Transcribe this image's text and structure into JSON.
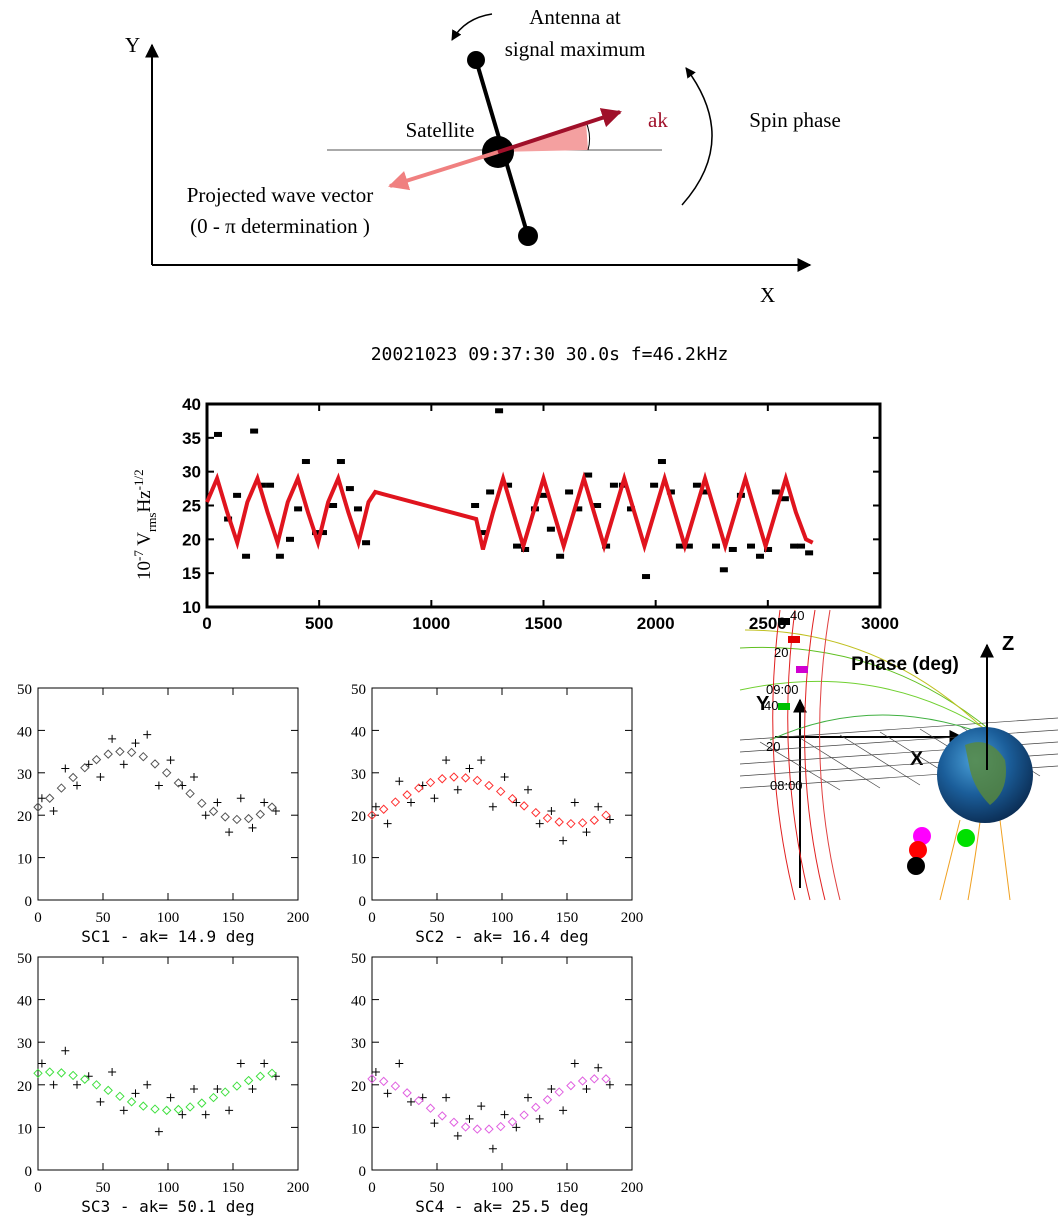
{
  "diagram": {
    "y_axis": "Y",
    "x_axis": "X",
    "antenna": [
      "Antenna  at",
      "signal maximum"
    ],
    "spin": "Spin phase",
    "satellite": "Satellite",
    "ak": "ak",
    "wave": [
      "Projected wave vector",
      "(0 - π  determination  )"
    ],
    "xy_y": "Y",
    "xy_x": "X",
    "z": "Z",
    "orbit_labels": [
      "40",
      "20",
      "09:00",
      "40",
      "20",
      "08:00"
    ]
  },
  "chart_data": [
    {
      "type": "line",
      "title": "20021023 09:37:30    30.0s  f=46.2kHz",
      "y_label": [
        "10",
        "-7",
        " V",
        "rms",
        "Hz",
        "-1/2"
      ],
      "x_label": "Phase (deg)",
      "xlim": [
        0,
        3000
      ],
      "ylim": [
        10,
        40
      ],
      "xticks": [
        0,
        500,
        1000,
        1500,
        2000,
        2500,
        3000
      ],
      "yticks": [
        10,
        15,
        20,
        25,
        30,
        35,
        40
      ],
      "series": [
        {
          "mode": "markers",
          "color": "#000000",
          "x": [
            49,
            94,
            134,
            174,
            210,
            245,
            281,
            325,
            370,
            406,
            441,
            486,
            517,
            562,
            597,
            637,
            673,
            709,
            1195,
            1226,
            1262,
            1302,
            1342,
            1382,
            1418,
            1462,
            1498,
            1533,
            1574,
            1614,
            1655,
            1699,
            1739,
            1779,
            1814,
            1854,
            1890,
            1957,
            1993,
            2028,
            2068,
            2108,
            2148,
            2184,
            2224,
            2269,
            2304,
            2344,
            2380,
            2425,
            2465,
            2501,
            2536,
            2576,
            2617,
            2648,
            2684
          ],
          "values": [
            35.5,
            23,
            26.5,
            17.5,
            36,
            28,
            28,
            17.5,
            20,
            24.5,
            31.5,
            21,
            21,
            25,
            31.5,
            27.5,
            24.5,
            19.5,
            25,
            21,
            27,
            39,
            28,
            19,
            18.5,
            24.5,
            26.5,
            21.5,
            17.5,
            27,
            24.5,
            29.5,
            25,
            19,
            28,
            28,
            24.5,
            14.5,
            28,
            31.5,
            27,
            19,
            19,
            28,
            27,
            19,
            15.5,
            18.5,
            26.5,
            19,
            17.5,
            18.5,
            27,
            26,
            19,
            19,
            18
          ]
        },
        {
          "mode": "lines",
          "color": "#e0141e",
          "x": [
            0,
            45,
            90,
            135,
            180,
            225,
            270,
            315,
            360,
            405,
            450,
            495,
            540,
            585,
            630,
            675,
            720,
            750,
            1200,
            1230,
            1275,
            1320,
            1365,
            1410,
            1455,
            1500,
            1545,
            1590,
            1635,
            1680,
            1725,
            1770,
            1815,
            1860,
            1905,
            1950,
            1995,
            2040,
            2085,
            2130,
            2175,
            2220,
            2265,
            2310,
            2355,
            2400,
            2445,
            2490,
            2535,
            2580,
            2625,
            2670,
            2700
          ],
          "values": [
            25.5,
            29,
            24,
            19.5,
            25.5,
            29,
            24,
            19.5,
            25.5,
            29,
            24,
            19.5,
            25.5,
            29,
            24,
            19.5,
            25.5,
            27,
            23,
            18.5,
            24,
            29,
            24,
            19,
            24,
            29,
            24,
            19,
            24,
            29,
            24,
            19,
            24,
            29,
            24,
            19,
            24,
            29,
            24,
            19,
            24,
            29,
            24,
            19,
            24,
            29,
            24,
            19,
            24,
            29,
            24,
            20,
            19.5
          ]
        }
      ]
    },
    {
      "type": "scatter",
      "x_label": "SC1 - ak= 14.9 deg",
      "xlim": [
        0,
        200
      ],
      "ylim": [
        0,
        50
      ],
      "xticks": [
        0,
        50,
        100,
        150,
        200
      ],
      "yticks": [
        0,
        10,
        20,
        30,
        40,
        50
      ],
      "series": [
        {
          "mode": "plus",
          "color": "#000000",
          "x": [
            3,
            12,
            21,
            30,
            39,
            48,
            57,
            66,
            75,
            84,
            93,
            102,
            111,
            120,
            129,
            138,
            147,
            156,
            165,
            174,
            183
          ],
          "values": [
            24,
            21,
            31,
            27,
            32,
            29,
            38,
            32,
            37,
            39,
            27,
            33,
            27,
            29,
            20,
            23,
            16,
            24,
            17,
            23,
            21
          ]
        },
        {
          "mode": "diamond",
          "color": "#555555",
          "x": [
            0,
            9,
            18,
            27,
            36,
            45,
            54,
            63,
            72,
            81,
            90,
            99,
            108,
            117,
            126,
            135,
            144,
            153,
            162,
            171,
            180
          ],
          "values": [
            21.9,
            24.0,
            26.4,
            28.9,
            31.2,
            33.1,
            34.4,
            35.0,
            34.8,
            33.8,
            32.1,
            30.0,
            27.6,
            25.1,
            22.8,
            20.9,
            19.6,
            19.0,
            19.2,
            20.2,
            21.9
          ]
        }
      ]
    },
    {
      "type": "scatter",
      "x_label": "SC2 - ak= 16.4 deg",
      "xlim": [
        0,
        200
      ],
      "ylim": [
        0,
        50
      ],
      "xticks": [
        0,
        50,
        100,
        150,
        200
      ],
      "yticks": [
        0,
        10,
        20,
        30,
        40,
        50
      ],
      "series": [
        {
          "mode": "plus",
          "color": "#000000",
          "x": [
            3,
            12,
            21,
            30,
            39,
            48,
            57,
            66,
            75,
            84,
            93,
            102,
            111,
            120,
            129,
            138,
            147,
            156,
            165,
            174,
            183
          ],
          "values": [
            22,
            18,
            28,
            23,
            27,
            24,
            33,
            26,
            31,
            33,
            22,
            29,
            23,
            26,
            18,
            21,
            14,
            23,
            16,
            22,
            19
          ]
        },
        {
          "mode": "diamond",
          "color": "#ff3030",
          "x": [
            0,
            9,
            18,
            27,
            36,
            45,
            54,
            63,
            72,
            81,
            90,
            99,
            108,
            117,
            126,
            135,
            144,
            153,
            162,
            171,
            180
          ],
          "values": [
            20.0,
            21.4,
            23.1,
            24.8,
            26.4,
            27.7,
            28.6,
            29.0,
            28.8,
            28.2,
            27.0,
            25.6,
            23.9,
            22.2,
            20.6,
            19.3,
            18.4,
            18.0,
            18.2,
            18.8,
            20.0
          ]
        }
      ]
    },
    {
      "type": "scatter",
      "x_label": "SC3 - ak= 50.1 deg",
      "xlim": [
        0,
        200
      ],
      "ylim": [
        0,
        50
      ],
      "xticks": [
        0,
        50,
        100,
        150,
        200
      ],
      "yticks": [
        0,
        10,
        20,
        30,
        40,
        50
      ],
      "series": [
        {
          "mode": "plus",
          "color": "#000000",
          "x": [
            3,
            12,
            21,
            30,
            39,
            48,
            57,
            66,
            75,
            84,
            93,
            102,
            111,
            120,
            129,
            138,
            147,
            156,
            165,
            174,
            183
          ],
          "values": [
            25,
            20,
            28,
            20,
            22,
            16,
            23,
            14,
            18,
            20,
            9,
            17,
            13,
            19,
            13,
            19,
            14,
            25,
            19,
            25,
            22
          ]
        },
        {
          "mode": "diamond",
          "color": "#40e040",
          "x": [
            0,
            9,
            18,
            27,
            36,
            45,
            54,
            63,
            72,
            81,
            90,
            99,
            108,
            117,
            126,
            135,
            144,
            153,
            162,
            171,
            180
          ],
          "values": [
            22.7,
            23.0,
            22.8,
            22.2,
            21.3,
            20.0,
            18.7,
            17.3,
            16.0,
            15.0,
            14.3,
            14.0,
            14.2,
            14.8,
            15.7,
            17.0,
            18.3,
            19.7,
            21.0,
            22.0,
            22.7
          ]
        }
      ]
    },
    {
      "type": "scatter",
      "x_label": "SC4 - ak= 25.5 deg",
      "xlim": [
        0,
        200
      ],
      "ylim": [
        0,
        50
      ],
      "xticks": [
        0,
        50,
        100,
        150,
        200
      ],
      "yticks": [
        0,
        10,
        20,
        30,
        40,
        50
      ],
      "series": [
        {
          "mode": "plus",
          "color": "#000000",
          "x": [
            3,
            12,
            21,
            30,
            39,
            48,
            57,
            66,
            75,
            84,
            93,
            102,
            111,
            120,
            129,
            138,
            147,
            156,
            165,
            174,
            183
          ],
          "values": [
            23,
            18,
            25,
            16,
            17,
            11,
            17,
            8,
            12,
            15,
            5,
            13,
            10,
            17,
            12,
            19,
            14,
            25,
            19,
            24,
            20
          ]
        },
        {
          "mode": "diamond",
          "color": "#e060e0",
          "x": [
            0,
            9,
            18,
            27,
            36,
            45,
            54,
            63,
            72,
            81,
            90,
            99,
            108,
            117,
            126,
            135,
            144,
            153,
            162,
            171,
            180
          ],
          "values": [
            21.4,
            20.8,
            19.7,
            18.1,
            16.3,
            14.5,
            12.7,
            11.2,
            10.1,
            9.6,
            9.6,
            10.2,
            11.3,
            12.9,
            14.7,
            16.5,
            18.3,
            19.8,
            20.9,
            21.4,
            21.4
          ]
        }
      ]
    }
  ]
}
